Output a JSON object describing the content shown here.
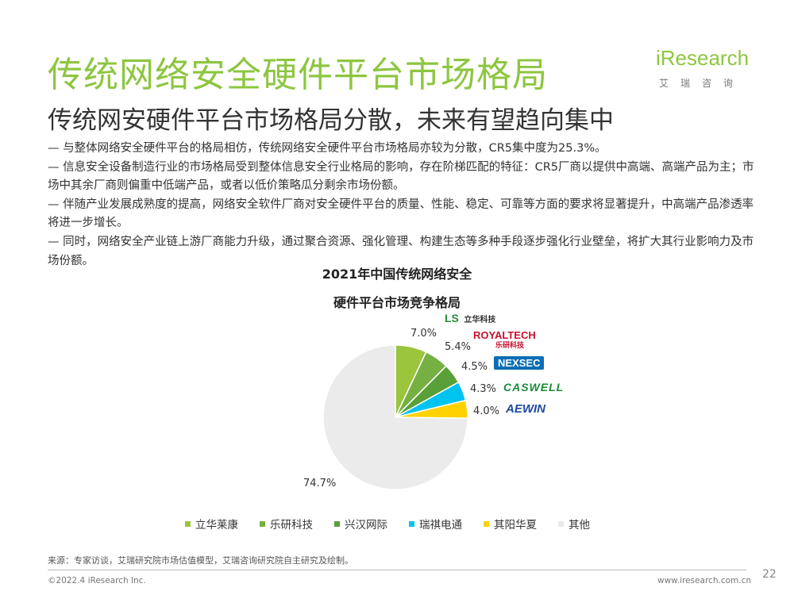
{
  "header": {
    "title": "传统网络安全硬件平台市场格局",
    "subtitle": "传统网安硬件平台市场格局分散，未来有望趋向集中"
  },
  "logo": {
    "main": "iResearch",
    "sub": "艾瑞咨询"
  },
  "bullets": [
    "— 与整体网络安全硬件平台的格局相仿，传统网络安全硬件平台市场格局亦较为分散，CR5集中度为25.3%。",
    "— 信息安全设备制造行业的市场格局受到整体信息安全行业格局的影响，存在阶梯匹配的特征：CR5厂商以提供中高端、高端产品为主；市场中其余厂商则偏重中低端产品，或者以低价策略瓜分剩余市场份额。",
    "— 伴随产业发展成熟度的提高，网络安全软件厂商对安全硬件平台的质量、性能、稳定、可靠等方面的要求将显著提升，中高端产品渗透率将进一步增长。",
    "— 同时，网络安全产业链上游厂商能力升级，通过聚合资源、强化管理、构建生态等多种手段逐步强化行业壁垒，将扩大其行业影响力及市场份额。"
  ],
  "chart_data": {
    "type": "pie",
    "title_line1": "2021年中国传统网络安全",
    "title_line2": "硬件平台市场竞争格局",
    "labels": [
      "立华莱康",
      "乐研科技",
      "兴汉网际",
      "瑞祺电通",
      "其阳华夏",
      "其他"
    ],
    "values": [
      7.0,
      5.4,
      4.5,
      4.3,
      4.0,
      74.7
    ],
    "value_labels": [
      "7.0%",
      "5.4%",
      "4.5%",
      "4.3%",
      "4.0%",
      "74.7%"
    ],
    "colors": [
      "#9bc53d",
      "#76b043",
      "#5aa038",
      "#00c3f0",
      "#ffd200",
      "#ebebeb"
    ],
    "legend_position": "bottom",
    "brand_logos": [
      "LS 立华科技",
      "ROYALTECH 乐研科技",
      "NEXSEC",
      "CASWELL",
      "AEWIN"
    ]
  },
  "footer": {
    "source": "来源：专家访谈，艾瑞研究院市场估值模型，艾瑞咨询研究院自主研究及绘制。",
    "copyright": "©2022.4 iResearch Inc.",
    "site": "www.iresearch.com.cn",
    "page": "22"
  }
}
